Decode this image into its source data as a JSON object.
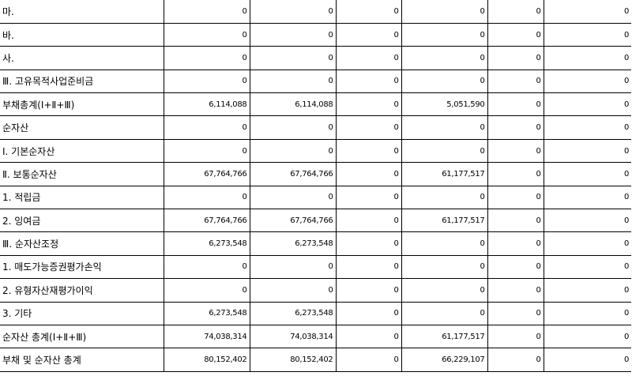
{
  "rows": [
    {
      "label": "마.",
      "values": [
        "0",
        "0",
        "0",
        "0",
        "0",
        "0"
      ]
    },
    {
      "label": "바.",
      "values": [
        "0",
        "0",
        "0",
        "0",
        "0",
        "0"
      ]
    },
    {
      "label": "사.",
      "values": [
        "0",
        "0",
        "0",
        "0",
        "0",
        "0"
      ]
    },
    {
      "label": "Ⅲ. 고유목적사업준비금",
      "values": [
        "0",
        "0",
        "0",
        "0",
        "0",
        "0"
      ]
    },
    {
      "label": "부채총계(Ⅰ+Ⅱ+Ⅲ)",
      "values": [
        "6,114,088",
        "6,114,088",
        "0",
        "5,051,590",
        "0",
        "0"
      ]
    },
    {
      "label": "순자산",
      "values": [
        "0",
        "0",
        "0",
        "0",
        "0",
        "0"
      ]
    },
    {
      "label": "Ⅰ. 기본순자산",
      "values": [
        "0",
        "0",
        "0",
        "0",
        "0",
        "0"
      ]
    },
    {
      "label": "Ⅱ. 보통순자산",
      "values": [
        "67,764,766",
        "67,764,766",
        "0",
        "61,177,517",
        "0",
        "0"
      ]
    },
    {
      "label": "1. 적립금",
      "values": [
        "0",
        "0",
        "0",
        "0",
        "0",
        "0"
      ]
    },
    {
      "label": "2. 잉여금",
      "values": [
        "67,764,766",
        "67,764,766",
        "0",
        "61,177,517",
        "0",
        "0"
      ]
    },
    {
      "label": "Ⅲ. 순자산조정",
      "values": [
        "6,273,548",
        "6,273,548",
        "0",
        "0",
        "0",
        "0"
      ]
    },
    {
      "label": "1. 매도가능증권평가손익",
      "values": [
        "0",
        "0",
        "0",
        "0",
        "0",
        "0"
      ]
    },
    {
      "label": "2. 유형자산재평가이익",
      "values": [
        "0",
        "0",
        "0",
        "0",
        "0",
        "0"
      ]
    },
    {
      "label": "3. 기타",
      "values": [
        "6,273,548",
        "6,273,548",
        "0",
        "0",
        "0",
        "0"
      ]
    },
    {
      "label": "순자산 총계(Ⅰ+Ⅱ+Ⅲ)",
      "values": [
        "74,038,314",
        "74,038,314",
        "0",
        "61,177,517",
        "0",
        "0"
      ]
    },
    {
      "label": "부채 및 순자산 총계",
      "values": [
        "80,152,402",
        "80,152,402",
        "0",
        "66,229,107",
        "0",
        "0"
      ]
    }
  ]
}
